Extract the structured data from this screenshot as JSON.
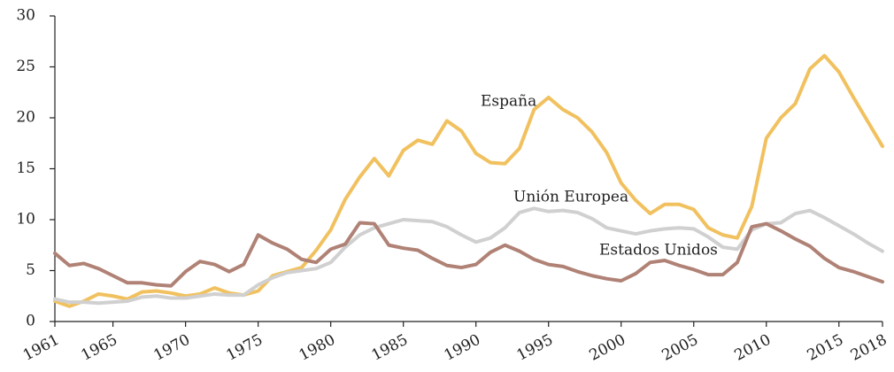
{
  "chart_data": {
    "type": "line",
    "x": [
      1961,
      1962,
      1963,
      1964,
      1965,
      1966,
      1967,
      1968,
      1969,
      1970,
      1971,
      1972,
      1973,
      1974,
      1975,
      1976,
      1977,
      1978,
      1979,
      1980,
      1981,
      1982,
      1983,
      1984,
      1985,
      1986,
      1987,
      1988,
      1989,
      1990,
      1991,
      1992,
      1993,
      1994,
      1995,
      1996,
      1997,
      1998,
      1999,
      2000,
      2001,
      2002,
      2003,
      2004,
      2005,
      2006,
      2007,
      2008,
      2009,
      2010,
      2011,
      2012,
      2013,
      2014,
      2015,
      2016,
      2017,
      2018
    ],
    "series": [
      {
        "name": "España",
        "color": "#f1c15f",
        "values": [
          2.0,
          1.5,
          2.0,
          2.7,
          2.5,
          2.2,
          2.9,
          3.0,
          2.8,
          2.5,
          2.7,
          3.3,
          2.8,
          2.6,
          3.0,
          4.5,
          4.9,
          5.3,
          7.0,
          9.0,
          12.0,
          14.2,
          16.0,
          14.3,
          16.8,
          17.8,
          17.4,
          19.7,
          18.7,
          16.5,
          15.6,
          15.5,
          17.0,
          20.8,
          22.0,
          20.8,
          20.0,
          18.6,
          16.6,
          13.6,
          11.9,
          10.6,
          11.5,
          11.5,
          11.0,
          9.2,
          8.5,
          8.2,
          11.3,
          18.0,
          20.0,
          21.4,
          24.8,
          26.1,
          24.5,
          22.0,
          19.6,
          17.2
        ]
      },
      {
        "name": "Unión Europea",
        "color": "#d0d0d0",
        "values": [
          2.2,
          1.9,
          1.9,
          1.8,
          1.9,
          2.0,
          2.4,
          2.5,
          2.3,
          2.3,
          2.5,
          2.7,
          2.6,
          2.6,
          3.6,
          4.3,
          4.8,
          5.0,
          5.2,
          5.8,
          7.3,
          8.5,
          9.2,
          9.6,
          10.0,
          9.9,
          9.8,
          9.3,
          8.5,
          7.8,
          8.2,
          9.2,
          10.7,
          11.1,
          10.8,
          10.9,
          10.7,
          10.1,
          9.2,
          8.9,
          8.6,
          8.9,
          9.1,
          9.2,
          9.1,
          8.3,
          7.3,
          7.1,
          9.0,
          9.6,
          9.7,
          10.6,
          10.9,
          10.2,
          9.4,
          8.6,
          7.7,
          6.9
        ]
      },
      {
        "name": "Estados Unidos",
        "color": "#b08276",
        "values": [
          6.7,
          5.5,
          5.7,
          5.2,
          4.5,
          3.8,
          3.8,
          3.6,
          3.5,
          4.9,
          5.9,
          5.6,
          4.9,
          5.6,
          8.5,
          7.7,
          7.1,
          6.1,
          5.8,
          7.1,
          7.6,
          9.7,
          9.6,
          7.5,
          7.2,
          7.0,
          6.2,
          5.5,
          5.3,
          5.6,
          6.8,
          7.5,
          6.9,
          6.1,
          5.6,
          5.4,
          4.9,
          4.5,
          4.2,
          4.0,
          4.7,
          5.8,
          6.0,
          5.5,
          5.1,
          4.6,
          4.6,
          5.8,
          9.3,
          9.6,
          8.9,
          8.1,
          7.4,
          6.2,
          5.3,
          4.9,
          4.4,
          3.9
        ]
      }
    ],
    "xlim": [
      1961,
      2018
    ],
    "xticks": [
      1961,
      1965,
      1970,
      1975,
      1980,
      1985,
      1990,
      1995,
      2000,
      2005,
      2010,
      2015,
      2018
    ],
    "ylim": [
      0,
      30
    ],
    "yticks": [
      0,
      5,
      10,
      15,
      20,
      25,
      30
    ],
    "grid": false
  }
}
